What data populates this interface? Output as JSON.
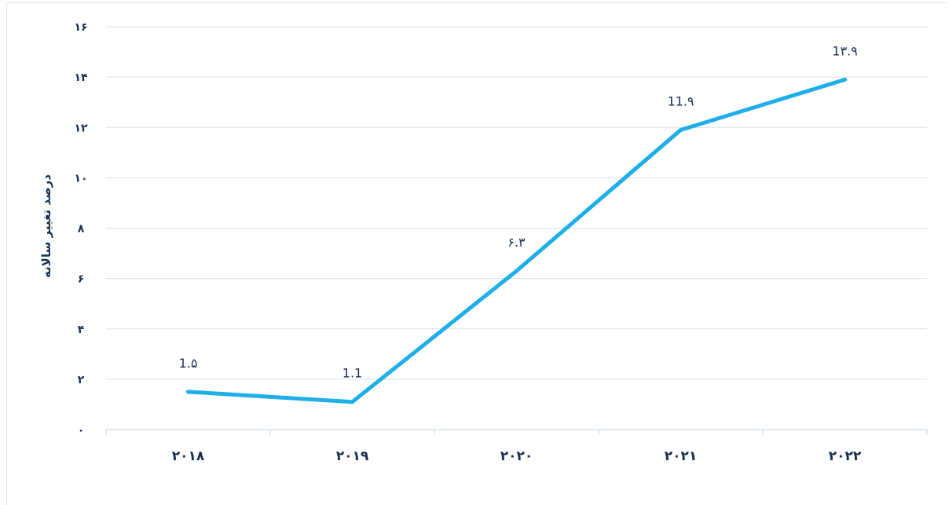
{
  "chart_data": {
    "type": "line",
    "categories": [
      "۲۰۱۸",
      "۲۰۱۹",
      "۲۰۲۰",
      "۲۰۲۱",
      "۲۰۲۲"
    ],
    "series": [
      {
        "values": [
          1.5,
          1.1,
          6.3,
          11.9,
          13.9
        ]
      }
    ],
    "data_labels": [
      "1.۵",
      "1.1",
      "۶.۳",
      "11.۹",
      "1۳.۹"
    ],
    "ytick_labels": [
      "۰",
      "۲",
      "۴",
      "۶",
      "۸",
      "۱۰",
      "۱۲",
      "۱۴",
      "۱۶"
    ],
    "ytick_values": [
      0,
      2,
      4,
      6,
      8,
      10,
      12,
      14,
      16
    ],
    "ylim": [
      0,
      16
    ],
    "xlabel": "",
    "ylabel": "درصد تغییر سالانه",
    "title": "",
    "grid": "horizontal",
    "line_color": "#1eaee8",
    "grid_color": "#d5e1ec",
    "text_color": "#1a2e52"
  }
}
